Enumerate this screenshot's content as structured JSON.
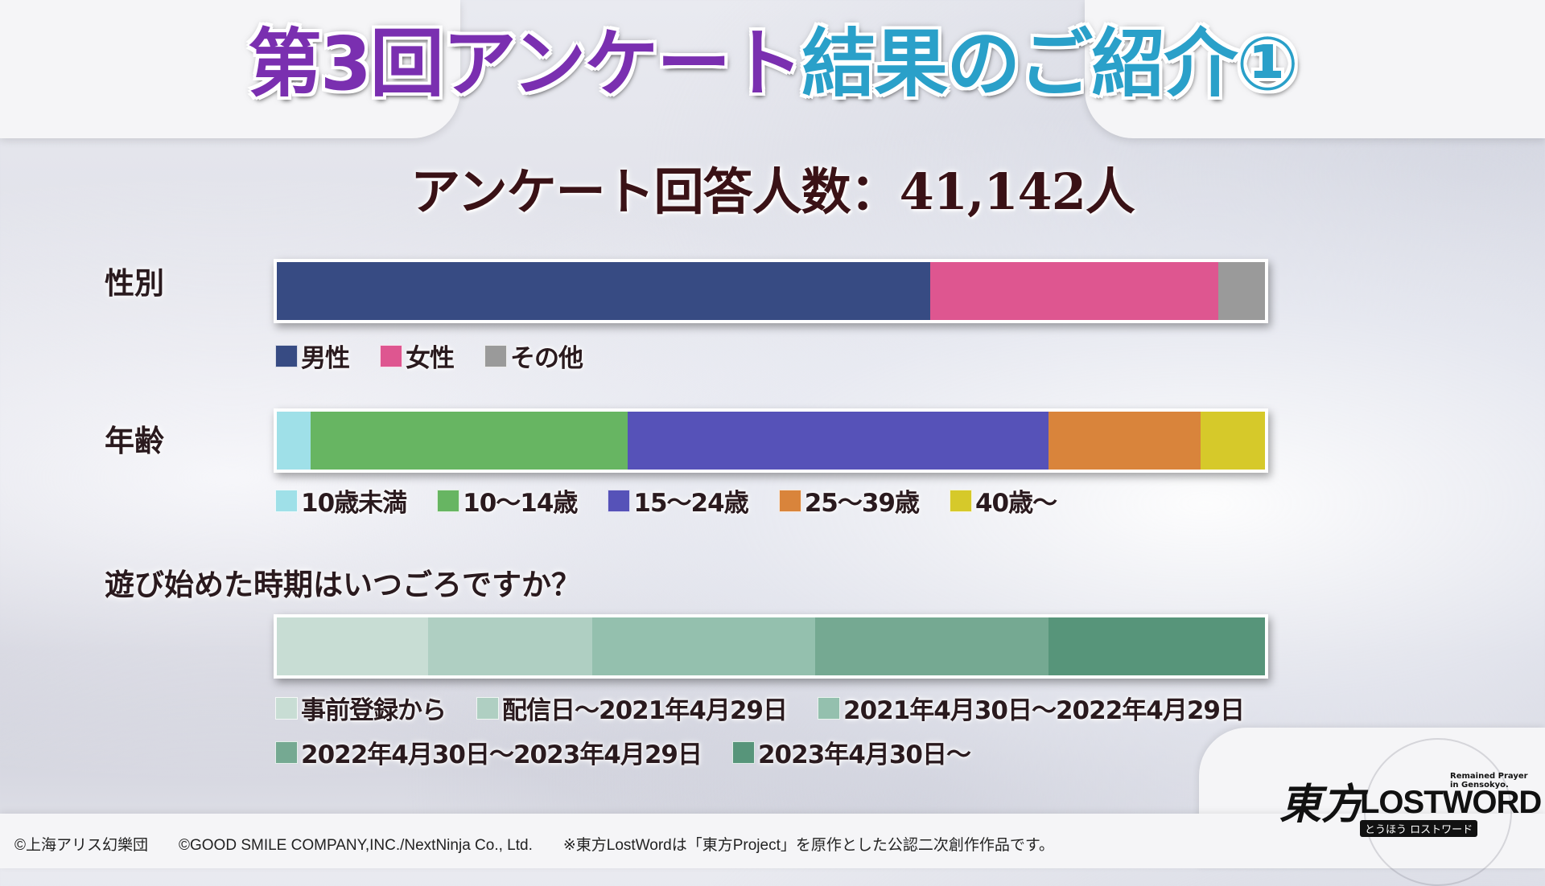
{
  "title": {
    "part1": "第3回アンケート",
    "part2": "結果のご紹介①",
    "part1_color": "#7a2fb0",
    "part2_color": "#2aa0c9"
  },
  "respondents": "アンケート回答人数：41,142人",
  "chart_data": [
    {
      "type": "bar",
      "orientation": "horizontal-stacked-100",
      "label": "性別",
      "categories": [
        "男性",
        "女性",
        "その他"
      ],
      "values": [
        66.1,
        29.2,
        4.7
      ],
      "colors": [
        "#374b83",
        "#de5690",
        "#9a9a9a"
      ]
    },
    {
      "type": "bar",
      "orientation": "horizontal-stacked-100",
      "label": "年齢",
      "categories": [
        "10歳未満",
        "10～14歳",
        "15～24歳",
        "25～39歳",
        "40歳～"
      ],
      "values": [
        3.4,
        32.1,
        42.6,
        15.4,
        6.5
      ],
      "colors": [
        "#9fe0e8",
        "#67b562",
        "#5652b8",
        "#d9843b",
        "#d6c92a"
      ]
    },
    {
      "type": "bar",
      "orientation": "horizontal-stacked-100",
      "label": "遊び始めた時期はいつごろですか？",
      "categories": [
        "事前登録から",
        "配信日～2021年4月29日",
        "2021年4月30日～2022年4月29日",
        "2022年4月30日～2023年4月29日",
        "2023年4月30日～"
      ],
      "values": [
        15.3,
        16.6,
        22.6,
        23.6,
        21.9
      ],
      "colors": [
        "#c8ddd4",
        "#afcfc2",
        "#94c0ae",
        "#75a992",
        "#57957a"
      ]
    }
  ],
  "footer": {
    "copy1": "©上海アリス幻樂団",
    "copy2": "©GOOD SMILE COMPANY,INC./NextNinja Co., Ltd.",
    "note": "※東方LostWordは「東方Project」を原作とした公認二次創作作品です。"
  },
  "logo": {
    "kanji": "東方",
    "main": "LOSTWORD",
    "sub": "とうほう ロストワード",
    "tagline": "Remained Prayer\nin Gensokyo."
  }
}
